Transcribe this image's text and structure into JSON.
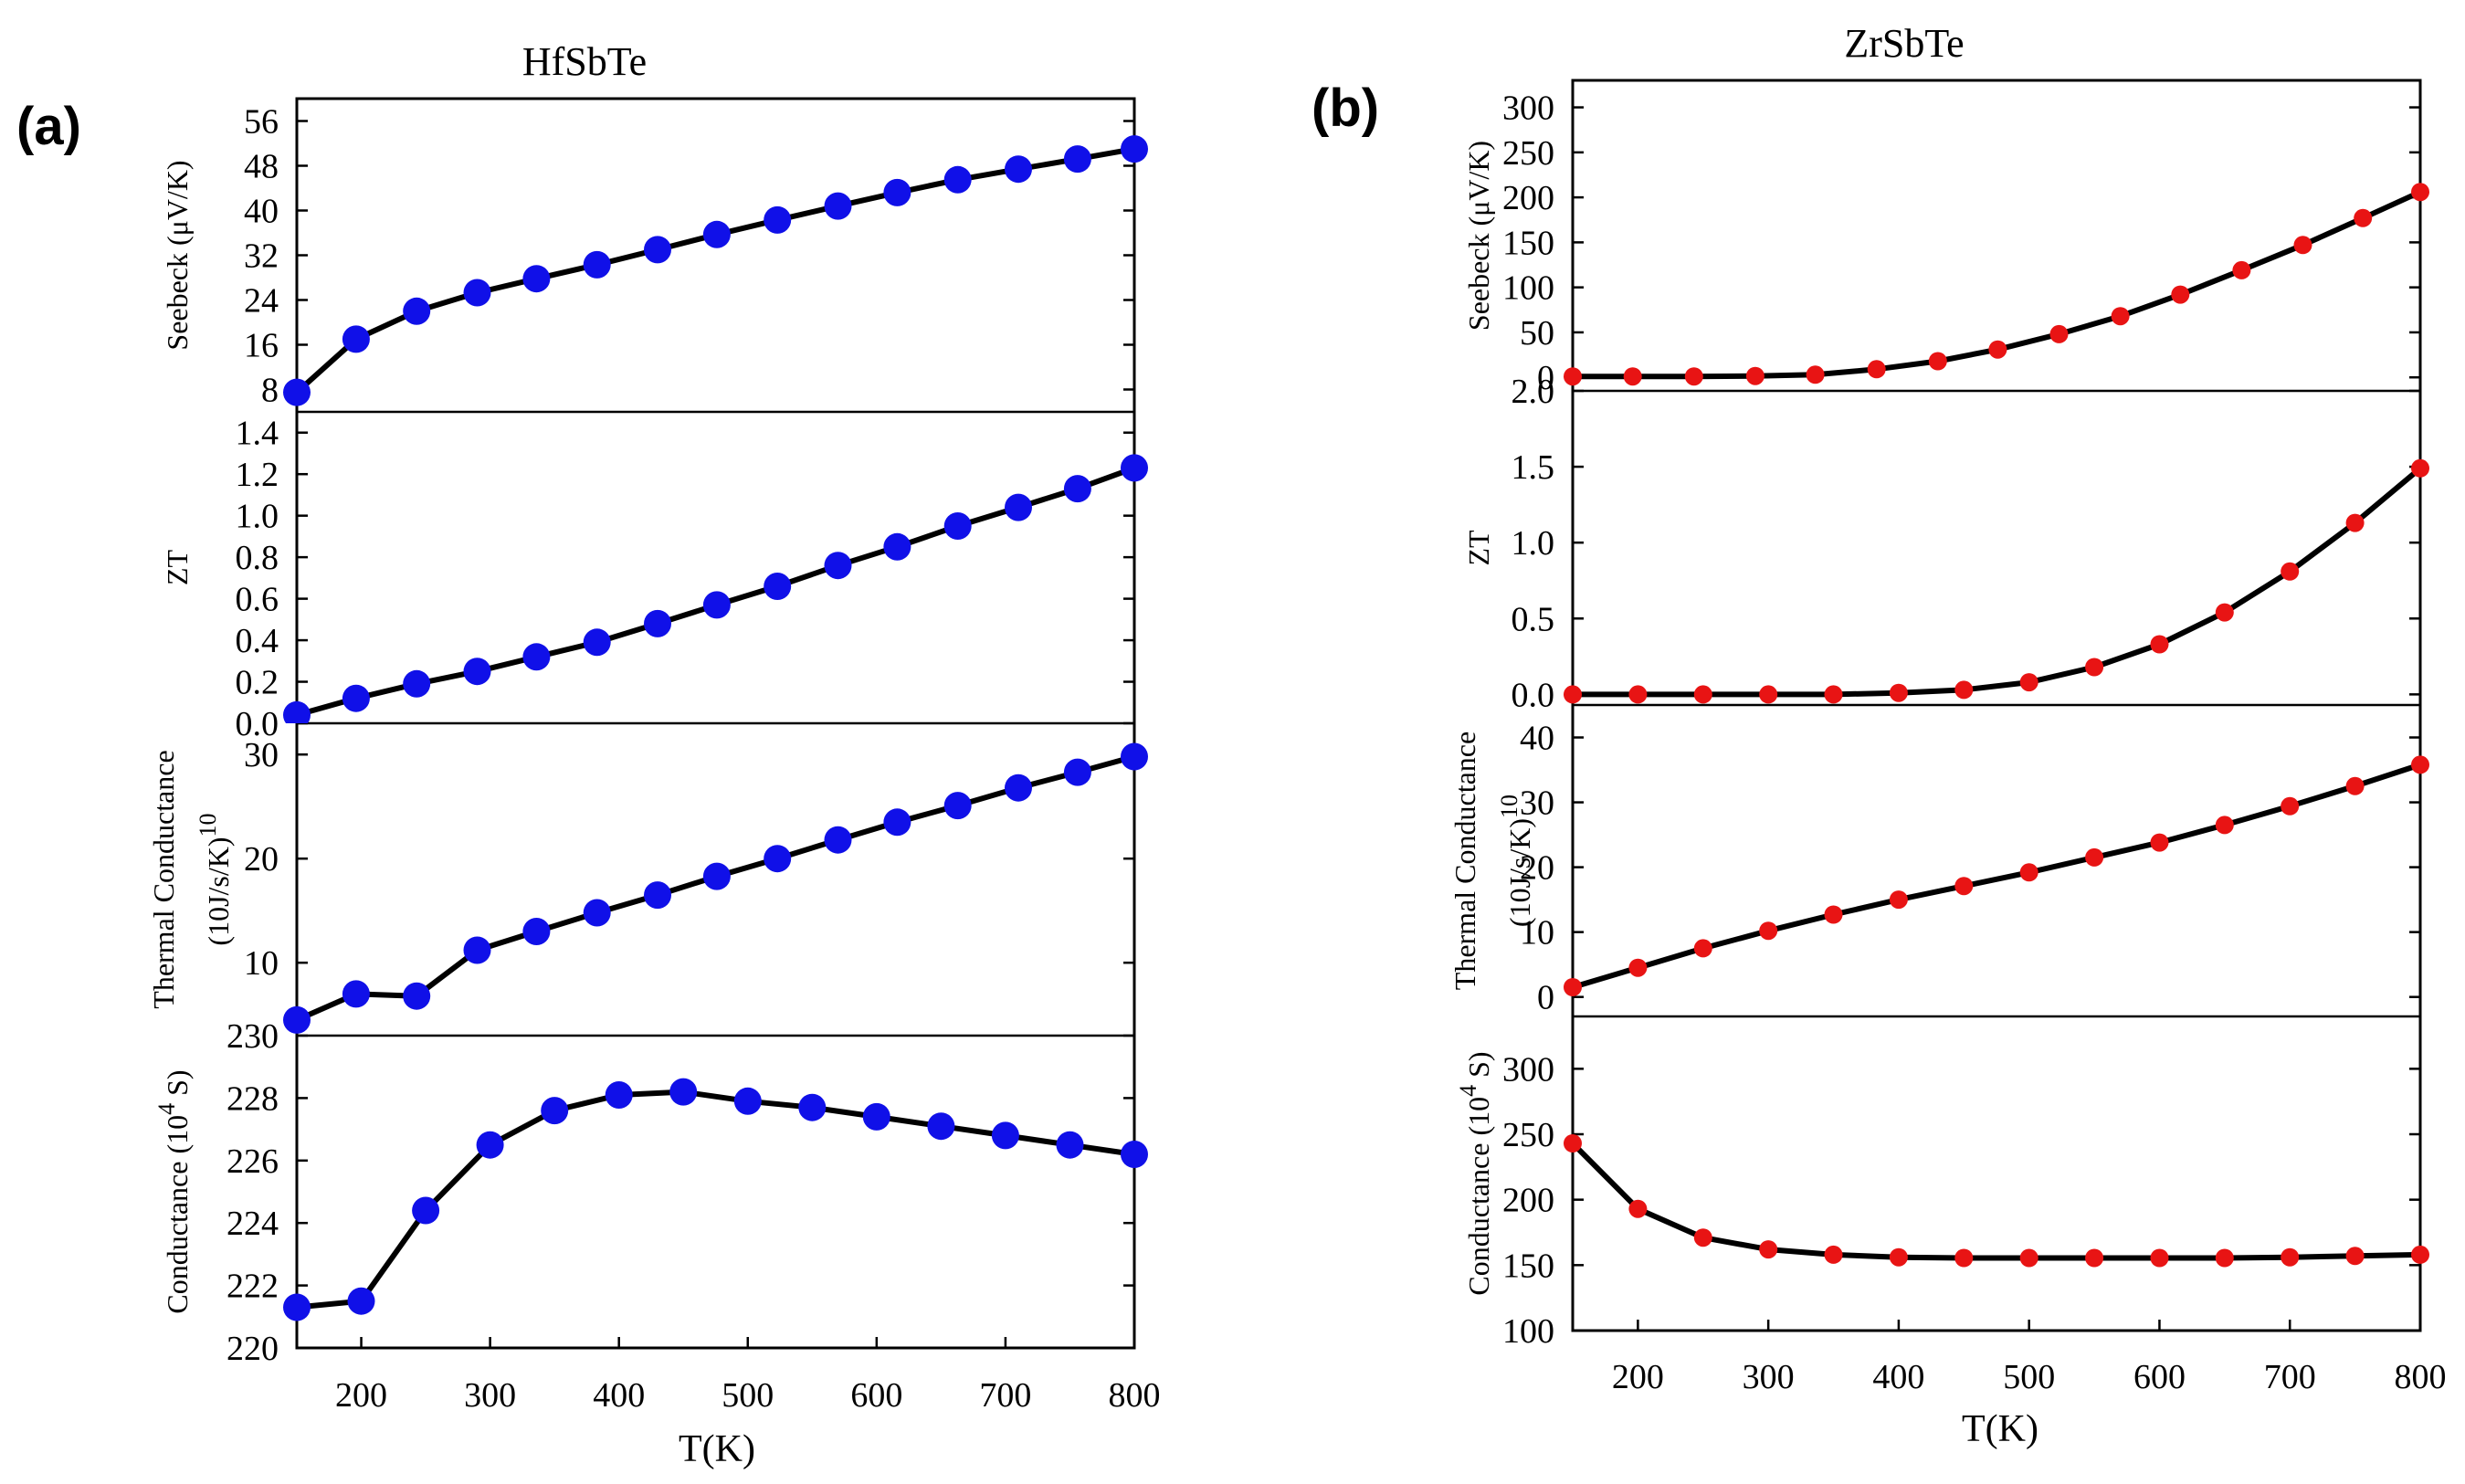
{
  "colors": {
    "hf_marker": "#1010e8",
    "zr_marker": "#e81414",
    "line": "#000000"
  },
  "chart_data": [
    {
      "type": "line",
      "id": "a",
      "panel_tag": "(a)",
      "title": "HfSbTe",
      "xlabel": "T(K)",
      "xlim": [
        150,
        800
      ],
      "xticks": [
        200,
        300,
        400,
        500,
        600,
        700,
        800
      ],
      "xtick_labels": [
        "200",
        "300",
        "400",
        "500",
        "600",
        "700",
        "800"
      ],
      "marker_color": "#1010e8",
      "marker_size": "large",
      "subplots": [
        {
          "ylabel": "Seebeck (μV/K)",
          "ylim": [
            4,
            60
          ],
          "yticks": [
            8,
            16,
            24,
            32,
            40,
            48,
            56
          ],
          "ytick_labels": [
            "8",
            "16",
            "24",
            "32",
            "40",
            "48",
            "56"
          ],
          "x": [
            150,
            196,
            243,
            290,
            336,
            383,
            430,
            476,
            523,
            570,
            616,
            663,
            710,
            756,
            800
          ],
          "y": [
            7.5,
            17,
            22,
            25.3,
            27.8,
            30.3,
            33,
            35.7,
            38.3,
            40.8,
            43.2,
            45.5,
            47.4,
            49.2,
            51
          ]
        },
        {
          "ylabel": "ZT",
          "ylim": [
            0,
            1.5
          ],
          "yticks": [
            0,
            0.2,
            0.4,
            0.6,
            0.8,
            1.0,
            1.2,
            1.4
          ],
          "ytick_labels": [
            "0.0",
            "0.2",
            "0.4",
            "0.6",
            "0.8",
            "1.0",
            "1.2",
            "1.4"
          ],
          "x": [
            150,
            196,
            243,
            290,
            336,
            383,
            430,
            476,
            523,
            570,
            616,
            663,
            710,
            756,
            800
          ],
          "y": [
            0.04,
            0.12,
            0.19,
            0.25,
            0.32,
            0.39,
            0.48,
            0.57,
            0.66,
            0.76,
            0.85,
            0.95,
            1.04,
            1.13,
            1.23
          ]
        },
        {
          "ylabel": "Thermal Conductance",
          "ylabel2": "(10J/s/K)",
          "ylabel2_sup": "10",
          "ylim": [
            3,
            33
          ],
          "yticks": [
            10,
            20,
            30
          ],
          "ytick_labels": [
            "10",
            "20",
            "30"
          ],
          "x": [
            150,
            196,
            243,
            290,
            336,
            383,
            430,
            476,
            523,
            570,
            616,
            663,
            710,
            756,
            800
          ],
          "y": [
            4.5,
            7,
            6.8,
            11.2,
            13,
            14.8,
            16.5,
            18.3,
            20,
            21.8,
            23.5,
            25.1,
            26.8,
            28.3,
            29.8
          ]
        },
        {
          "ylabel": "Conductance (10",
          "ylabel_sup": "4",
          "ylabel_end": "S)",
          "ylim": [
            220,
            230
          ],
          "yticks": [
            220,
            222,
            224,
            226,
            228,
            230
          ],
          "ytick_labels": [
            "220",
            "222",
            "224",
            "226",
            "228",
            "230"
          ],
          "x": [
            150,
            200,
            250,
            300,
            350,
            400,
            450,
            500,
            550,
            600,
            650,
            700,
            750,
            800
          ],
          "y": [
            221.3,
            221.5,
            224.4,
            226.5,
            227.6,
            228.1,
            228.2,
            227.9,
            227.7,
            227.4,
            227.1,
            226.8,
            226.5,
            226.2
          ]
        }
      ]
    },
    {
      "type": "line",
      "id": "b",
      "panel_tag": "(b)",
      "title": "ZrSbTe",
      "xlabel": "T(K)",
      "xlim": [
        150,
        800
      ],
      "xticks": [
        200,
        300,
        400,
        500,
        600,
        700,
        800
      ],
      "xtick_labels": [
        "200",
        "300",
        "400",
        "500",
        "600",
        "700",
        "800"
      ],
      "marker_color": "#e81414",
      "marker_size": "small",
      "subplots": [
        {
          "ylabel": "Seebeck (μV/K)",
          "ylim": [
            -15,
            330
          ],
          "yticks": [
            0,
            50,
            100,
            150,
            200,
            250,
            300
          ],
          "ytick_labels": [
            "0",
            "50",
            "100",
            "150",
            "200",
            "250",
            "300"
          ],
          "x": [
            150,
            196,
            243,
            290,
            336,
            383,
            430,
            476,
            523,
            570,
            616,
            663,
            710,
            756,
            800
          ],
          "y": [
            1,
            1,
            1,
            1.5,
            3,
            9,
            18,
            31,
            48,
            68,
            92,
            119,
            147,
            177,
            206
          ]
        },
        {
          "ylabel": "ZT",
          "ylim": [
            -0.07,
            2.0
          ],
          "yticks": [
            0,
            0.5,
            1.0,
            1.5,
            2.0
          ],
          "ytick_labels": [
            "0.0",
            "0.5",
            "1.0",
            "1.5",
            "2.0"
          ],
          "x": [
            150,
            200,
            250,
            300,
            350,
            400,
            450,
            500,
            550,
            600,
            650,
            700,
            750,
            800
          ],
          "y": [
            0,
            0,
            0,
            0,
            0,
            0.01,
            0.03,
            0.08,
            0.18,
            0.33,
            0.54,
            0.81,
            1.13,
            1.49
          ]
        },
        {
          "ylabel": "Thermal Conductance",
          "ylabel2": "(10J/s/K)",
          "ylabel2_sup": "10",
          "ylim": [
            -3,
            45
          ],
          "yticks": [
            0,
            10,
            20,
            30,
            40
          ],
          "ytick_labels": [
            "0",
            "10",
            "20",
            "30",
            "40"
          ],
          "x": [
            150,
            200,
            250,
            300,
            350,
            400,
            450,
            500,
            550,
            600,
            650,
            700,
            750,
            800
          ],
          "y": [
            1.5,
            4.5,
            7.5,
            10.2,
            12.7,
            15,
            17.1,
            19.2,
            21.5,
            23.8,
            26.5,
            29.4,
            32.5,
            35.8
          ]
        },
        {
          "ylabel": "Conductance (10",
          "ylabel_sup": "4",
          "ylabel_end": "S)",
          "ylim": [
            100,
            340
          ],
          "yticks": [
            100,
            150,
            200,
            250,
            300
          ],
          "ytick_labels": [
            "100",
            "150",
            "200",
            "250",
            "300"
          ],
          "x": [
            150,
            200,
            250,
            300,
            350,
            400,
            450,
            500,
            550,
            600,
            650,
            700,
            750,
            800
          ],
          "y": [
            243,
            193,
            171,
            162,
            158,
            156,
            155.5,
            155.5,
            155.5,
            155.5,
            155.5,
            156,
            157,
            158
          ]
        }
      ]
    }
  ]
}
